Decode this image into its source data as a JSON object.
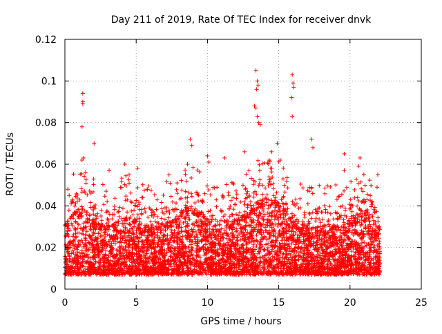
{
  "chart_data": {
    "type": "scatter",
    "title": "Day 211 of 2019, Rate Of TEC Index for receiver dnvk",
    "xlabel": "GPS time / hours",
    "ylabel": "ROTI / TECUs",
    "xlim": [
      0,
      25
    ],
    "ylim": [
      0,
      0.12
    ],
    "x_ticks": [
      0,
      5,
      10,
      15,
      20,
      25
    ],
    "x_tick_labels": [
      "0",
      "5",
      "10",
      "15",
      "20",
      "25"
    ],
    "y_ticks": [
      0,
      0.02,
      0.04,
      0.06,
      0.08,
      0.1,
      0.12
    ],
    "y_tick_labels": [
      "0",
      "0.02",
      "0.04",
      "0.06",
      "0.08",
      "0.1",
      "0.12"
    ],
    "grid": true,
    "marker": "+",
    "point_color": "#ff0000",
    "sample_points": [
      [
        1.25,
        0.094
      ],
      [
        1.25,
        0.09
      ],
      [
        1.25,
        0.089
      ],
      [
        1.2,
        0.078
      ],
      [
        2.05,
        0.07
      ],
      [
        1.2,
        0.062
      ],
      [
        1.3,
        0.063
      ],
      [
        13.4,
        0.105
      ],
      [
        13.5,
        0.1
      ],
      [
        13.55,
        0.098
      ],
      [
        13.45,
        0.096
      ],
      [
        13.3,
        0.088
      ],
      [
        13.4,
        0.087
      ],
      [
        13.5,
        0.083
      ],
      [
        13.6,
        0.08
      ],
      [
        13.7,
        0.079
      ],
      [
        15.95,
        0.103
      ],
      [
        16.0,
        0.099
      ],
      [
        16.05,
        0.097
      ],
      [
        15.9,
        0.092
      ],
      [
        15.95,
        0.083
      ],
      [
        8.8,
        0.072
      ],
      [
        8.9,
        0.069
      ],
      [
        17.3,
        0.072
      ],
      [
        17.4,
        0.068
      ],
      [
        19.6,
        0.065
      ],
      [
        20.7,
        0.063
      ],
      [
        20.6,
        0.059
      ],
      [
        19.6,
        0.057
      ],
      [
        4.2,
        0.06
      ],
      [
        10.0,
        0.064
      ],
      [
        10.1,
        0.061
      ],
      [
        11.2,
        0.063
      ],
      [
        14.9,
        0.07
      ],
      [
        14.5,
        0.066
      ],
      [
        15.1,
        0.062
      ],
      [
        12.6,
        0.066
      ],
      [
        21.95,
        0.055
      ],
      [
        21.9,
        0.049
      ],
      [
        3.1,
        0.057
      ],
      [
        5.1,
        0.058
      ],
      [
        7.3,
        0.055
      ],
      [
        8.6,
        0.06
      ],
      [
        0.2,
        0.048
      ],
      [
        0.3,
        0.045
      ]
    ],
    "dense_band": {
      "x_range": [
        0,
        22.1
      ],
      "y_range": [
        0.003,
        0.045
      ]
    }
  }
}
